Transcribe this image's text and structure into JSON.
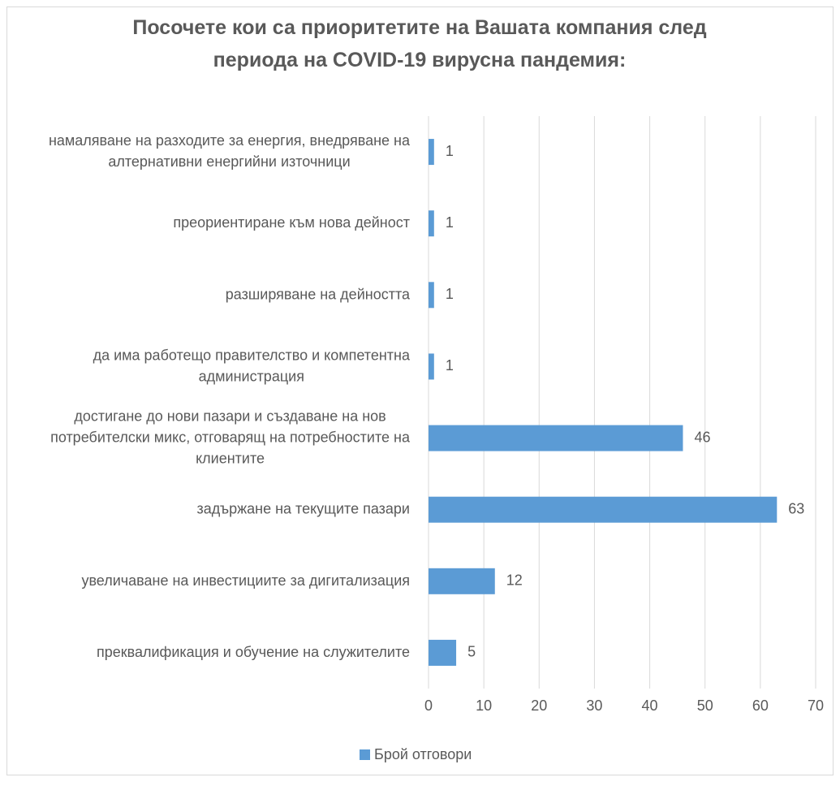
{
  "chart_data": {
    "type": "bar",
    "orientation": "horizontal",
    "title": "Посочете кои са приоритетите на Вашата компания след периода на COVID-19 вирусна пандемия:",
    "categories": [
      "намаляване на разходите за енергия, внедряване на алтернативни енергийни източници",
      "преориентиране към нова дейност",
      "разширяване на дейността",
      "да има работещо правителство и компетентна администрация",
      "достигане до нови пазари и създаване на нов потребителски микс, отговарящ на потребностите на клиентите",
      "задържане на текущите пазари",
      "увеличаване на инвестициите за дигитализация",
      "преквалификация и обучение на служителите"
    ],
    "series": [
      {
        "name": "Брой отговори",
        "color": "#5b9bd5",
        "values": [
          1,
          1,
          1,
          1,
          46,
          63,
          12,
          5
        ]
      }
    ],
    "xlim": [
      0,
      70
    ],
    "xticks": [
      0,
      10,
      20,
      30,
      40,
      50,
      60,
      70
    ],
    "grid": true,
    "legend": "bottom"
  }
}
